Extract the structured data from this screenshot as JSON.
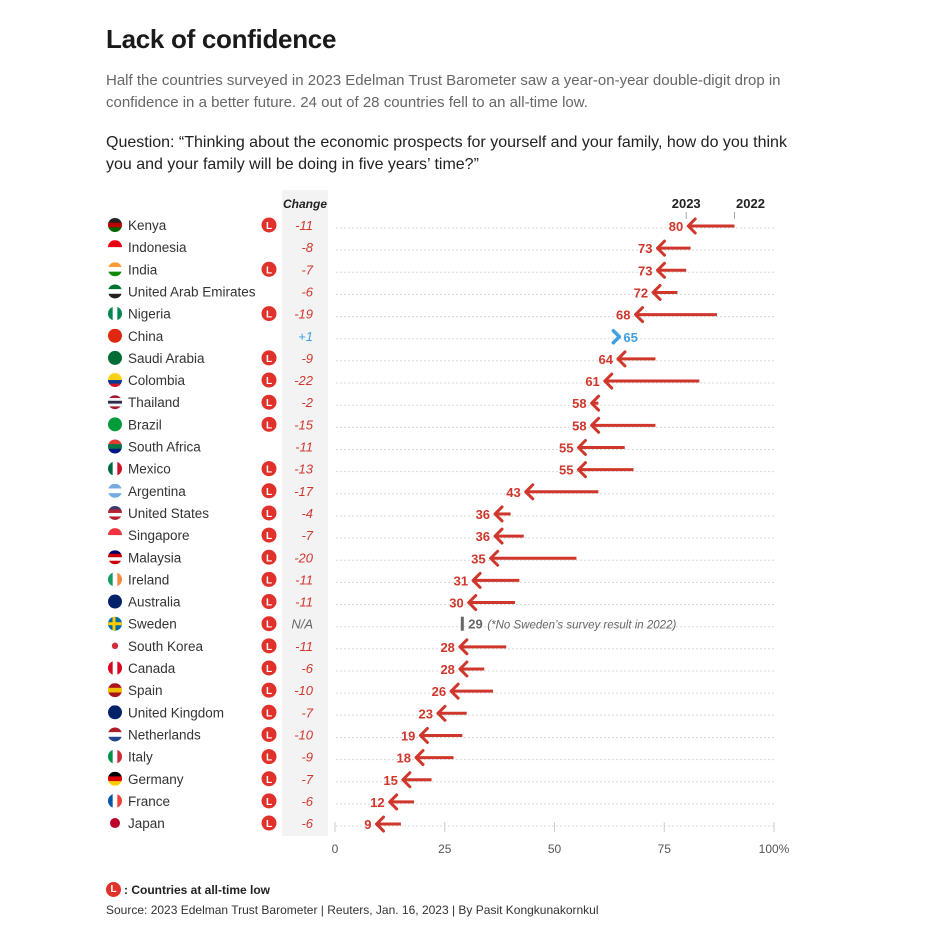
{
  "header": {
    "title": "Lack of confidence",
    "subtitle": "Half the countries surveyed in 2023 Edelman Trust Barometer saw a year-on-year double-digit drop in confidence in a better future. 24 out of 28 countries fell to an all-time low.",
    "question": "Question: “Thinking about the economic prospects for yourself and your family, how do you think you and your family will be doing in five years’ time?”"
  },
  "footer": {
    "legend_badge": "L",
    "legend_text": ": Countries at all-time low",
    "source": "Source: 2023 Edelman Trust Barometer | Reuters, Jan. 16, 2023 | By Pasit Kongkunakornkul"
  },
  "colors": {
    "decline": "#d0372c",
    "increase": "#3fa0e0",
    "no_data": "#666666",
    "badge": "#e0312a",
    "change_column_bg": "#f3f3f3",
    "gridline": "#d8d8d8"
  },
  "chart_data": {
    "type": "arrow-dot",
    "title": "Lack of confidence",
    "change_header": "Change",
    "series_labels": {
      "current": "2023",
      "previous": "2022"
    },
    "xlim": [
      0,
      100
    ],
    "x_ticks": [
      "0",
      "25",
      "50",
      "75",
      "100%"
    ],
    "x_tick_values": [
      0,
      25,
      50,
      75,
      100
    ],
    "grid": true,
    "badge_label": "L",
    "annotation": "(*No Sweden’s survey result in 2022)",
    "rows": [
      {
        "country": "Kenya",
        "flag": "kenya-flag-icon",
        "all_time_low": true,
        "change": "-11",
        "v2023": 80,
        "v2022": 91
      },
      {
        "country": "Indonesia",
        "flag": "indonesia-flag-icon",
        "all_time_low": false,
        "change": "-8",
        "v2023": 73,
        "v2022": 81
      },
      {
        "country": "India",
        "flag": "india-flag-icon",
        "all_time_low": true,
        "change": "-7",
        "v2023": 73,
        "v2022": 80
      },
      {
        "country": "United Arab Emirates",
        "flag": "uae-flag-icon",
        "all_time_low": false,
        "change": "-6",
        "v2023": 72,
        "v2022": 78
      },
      {
        "country": "Nigeria",
        "flag": "nigeria-flag-icon",
        "all_time_low": true,
        "change": "-19",
        "v2023": 68,
        "v2022": 87
      },
      {
        "country": "China",
        "flag": "china-flag-icon",
        "all_time_low": false,
        "change": "+1",
        "v2023": 65,
        "v2022": 64
      },
      {
        "country": "Saudi Arabia",
        "flag": "saudi-arabia-flag-icon",
        "all_time_low": true,
        "change": "-9",
        "v2023": 64,
        "v2022": 73
      },
      {
        "country": "Colombia",
        "flag": "colombia-flag-icon",
        "all_time_low": true,
        "change": "-22",
        "v2023": 61,
        "v2022": 83
      },
      {
        "country": "Thailand",
        "flag": "thailand-flag-icon",
        "all_time_low": true,
        "change": "-2",
        "v2023": 58,
        "v2022": 60
      },
      {
        "country": "Brazil",
        "flag": "brazil-flag-icon",
        "all_time_low": true,
        "change": "-15",
        "v2023": 58,
        "v2022": 73
      },
      {
        "country": "South Africa",
        "flag": "south-africa-flag-icon",
        "all_time_low": false,
        "change": "-11",
        "v2023": 55,
        "v2022": 66
      },
      {
        "country": "Mexico",
        "flag": "mexico-flag-icon",
        "all_time_low": true,
        "change": "-13",
        "v2023": 55,
        "v2022": 68
      },
      {
        "country": "Argentina",
        "flag": "argentina-flag-icon",
        "all_time_low": true,
        "change": "-17",
        "v2023": 43,
        "v2022": 60
      },
      {
        "country": "United States",
        "flag": "us-flag-icon",
        "all_time_low": true,
        "change": "-4",
        "v2023": 36,
        "v2022": 40
      },
      {
        "country": "Singapore",
        "flag": "singapore-flag-icon",
        "all_time_low": true,
        "change": "-7",
        "v2023": 36,
        "v2022": 43
      },
      {
        "country": "Malaysia",
        "flag": "malaysia-flag-icon",
        "all_time_low": true,
        "change": "-20",
        "v2023": 35,
        "v2022": 55
      },
      {
        "country": "Ireland",
        "flag": "ireland-flag-icon",
        "all_time_low": true,
        "change": "-11",
        "v2023": 31,
        "v2022": 42
      },
      {
        "country": "Australia",
        "flag": "australia-flag-icon",
        "all_time_low": true,
        "change": "-11",
        "v2023": 30,
        "v2022": 41
      },
      {
        "country": "Sweden",
        "flag": "sweden-flag-icon",
        "all_time_low": true,
        "change": "N/A",
        "v2023": 29,
        "v2022": null
      },
      {
        "country": "South Korea",
        "flag": "south-korea-flag-icon",
        "all_time_low": true,
        "change": "-11",
        "v2023": 28,
        "v2022": 39
      },
      {
        "country": "Canada",
        "flag": "canada-flag-icon",
        "all_time_low": true,
        "change": "-6",
        "v2023": 28,
        "v2022": 34
      },
      {
        "country": "Spain",
        "flag": "spain-flag-icon",
        "all_time_low": true,
        "change": "-10",
        "v2023": 26,
        "v2022": 36
      },
      {
        "country": "United Kingdom",
        "flag": "uk-flag-icon",
        "all_time_low": true,
        "change": "-7",
        "v2023": 23,
        "v2022": 30
      },
      {
        "country": "Netherlands",
        "flag": "netherlands-flag-icon",
        "all_time_low": true,
        "change": "-10",
        "v2023": 19,
        "v2022": 29
      },
      {
        "country": "Italy",
        "flag": "italy-flag-icon",
        "all_time_low": true,
        "change": "-9",
        "v2023": 18,
        "v2022": 27
      },
      {
        "country": "Germany",
        "flag": "germany-flag-icon",
        "all_time_low": true,
        "change": "-7",
        "v2023": 15,
        "v2022": 22
      },
      {
        "country": "France",
        "flag": "france-flag-icon",
        "all_time_low": true,
        "change": "-6",
        "v2023": 12,
        "v2022": 18
      },
      {
        "country": "Japan",
        "flag": "japan-flag-icon",
        "all_time_low": true,
        "change": "-6",
        "v2023": 9,
        "v2022": 15
      }
    ]
  }
}
